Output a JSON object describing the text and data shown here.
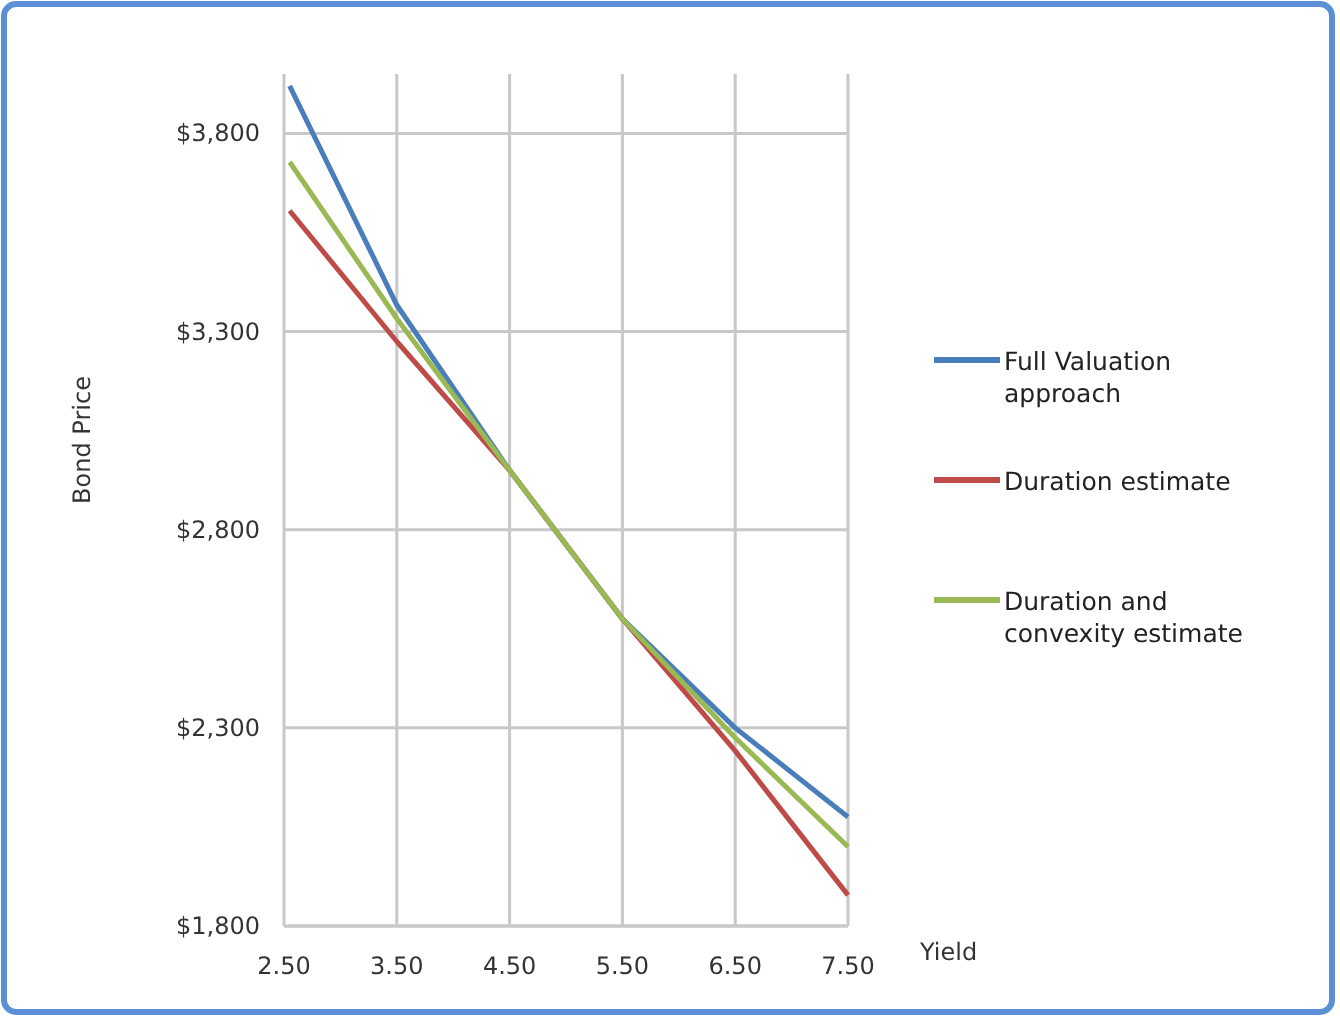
{
  "chart_data": {
    "type": "line",
    "xlabel": "Yield",
    "ylabel": "Bond Price",
    "xlim": [
      2.5,
      7.5
    ],
    "ylim": [
      1800,
      3950
    ],
    "xticks": [
      {
        "value": 2.5,
        "label": "2.50"
      },
      {
        "value": 3.5,
        "label": "3.50"
      },
      {
        "value": 4.5,
        "label": "4.50"
      },
      {
        "value": 5.5,
        "label": "5.50"
      },
      {
        "value": 6.5,
        "label": "6.50"
      },
      {
        "value": 7.5,
        "label": "7.50"
      }
    ],
    "yticks": [
      {
        "value": 1800,
        "label": "$1,800"
      },
      {
        "value": 2300,
        "label": "$2,300"
      },
      {
        "value": 2800,
        "label": "$2,800"
      },
      {
        "value": 3300,
        "label": "$3,300"
      },
      {
        "value": 3800,
        "label": "$3,800"
      }
    ],
    "x": [
      2.55,
      3.5,
      4.5,
      5.5,
      6.5,
      7.5
    ],
    "series": [
      {
        "name": "Full Valuation approach",
        "color": "#4a7ebb",
        "values": [
          3920,
          3367,
          2950,
          2575,
          2300,
          2075
        ]
      },
      {
        "name": "Duration estimate",
        "color": "#be4b48",
        "values": [
          3605,
          3275,
          2950,
          2575,
          2242,
          1878
        ]
      },
      {
        "name": "Duration and convexity estimate",
        "color": "#98b954",
        "values": [
          3728,
          3333,
          2950,
          2575,
          2275,
          2000
        ]
      }
    ],
    "grid": true,
    "legend": "right",
    "marker": "none",
    "line_style": "solid"
  }
}
